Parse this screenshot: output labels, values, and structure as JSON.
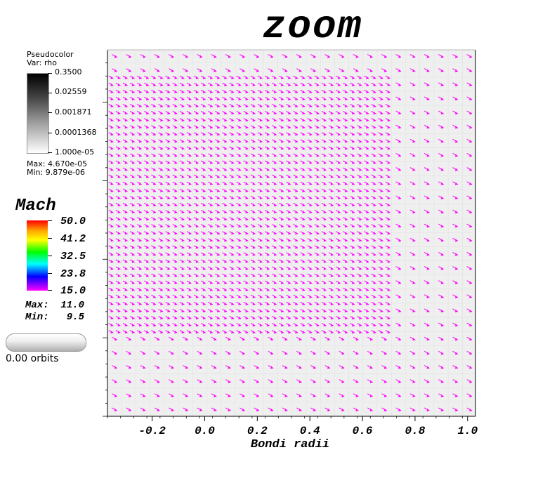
{
  "title": "zoom",
  "pseudocolor_legend": {
    "header": "Pseudocolor",
    "var": "Var: rho",
    "ticks": [
      "0.3500",
      "0.02559",
      "0.001871",
      "0.0001368",
      "1.000e-05"
    ],
    "max": "Max:  4.670e-05",
    "min": "Min:  9.879e-06"
  },
  "mach_legend": {
    "title": "Mach",
    "ticks": [
      "50.0",
      "41.2",
      "32.5",
      "23.8",
      "15.0"
    ],
    "max": "Max:  11.0",
    "min": "Min:   9.5"
  },
  "time_slider": {
    "label": "0.00 orbits"
  },
  "colors": {
    "vector": "#ff00ff",
    "background": "#efefef"
  },
  "chart_data": {
    "type": "vector field",
    "xlabel": "Bondi radii",
    "x_ticks": [
      "-0.2",
      "0.0",
      "0.2",
      "0.4",
      "0.6",
      "0.8",
      "1.0"
    ],
    "x_tick_values": [
      -0.2,
      0.0,
      0.2,
      0.4,
      0.6,
      0.8,
      1.0
    ],
    "xlim": [
      -0.37,
      1.03
    ],
    "fine_region": {
      "x_range": [
        -0.37,
        0.7
      ],
      "y_range": [
        0.31,
        1.3
      ],
      "spacing": 0.027
    },
    "coarse_region": {
      "spacing": 0.054
    },
    "ylim": [
      0,
      1.4
    ],
    "arrow_direction": "down-right"
  }
}
